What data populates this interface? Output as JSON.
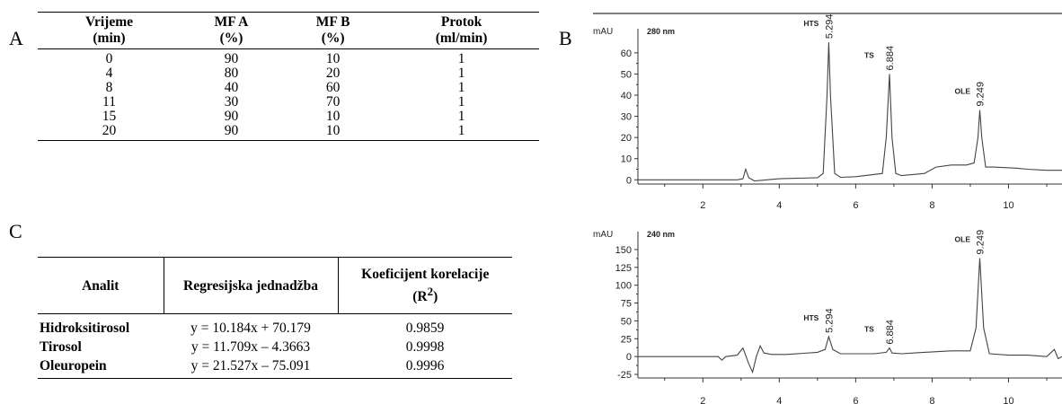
{
  "panels": {
    "a": "A",
    "b": "B",
    "c": "C"
  },
  "table_a": {
    "headers": [
      {
        "line1": "Vrijeme",
        "line2": "(min)"
      },
      {
        "line1": "MF A",
        "line2": "(%)"
      },
      {
        "line1": "MF B",
        "line2": "(%)"
      },
      {
        "line1": "Protok",
        "line2": "(ml/min)"
      }
    ],
    "rows": [
      [
        "0",
        "90",
        "10",
        "1"
      ],
      [
        "4",
        "80",
        "20",
        "1"
      ],
      [
        "8",
        "40",
        "60",
        "1"
      ],
      [
        "11",
        "30",
        "70",
        "1"
      ],
      [
        "15",
        "90",
        "10",
        "1"
      ],
      [
        "20",
        "90",
        "10",
        "1"
      ]
    ]
  },
  "table_c": {
    "headers": {
      "analyte": "Analit",
      "equation": "Regresijska jednadžba",
      "correlation": "Koeficijent korelacije",
      "correlation_symbol": "(R",
      "correlation_sup": "2",
      "correlation_close": ")"
    },
    "rows": [
      [
        "Hidroksitirosol",
        "y = 10.184x + 70.179",
        "0.9859"
      ],
      [
        "Tirosol",
        "y = 11.709x – 4.3663",
        "0.9998"
      ],
      [
        "Oleuropein",
        "y = 21.527x – 75.091",
        "0.9996"
      ]
    ]
  },
  "chart_data": [
    {
      "type": "line",
      "title": "280 nm",
      "ylabel": "mAU",
      "xlim": [
        0.3,
        11.4
      ],
      "ylim": [
        -2,
        68
      ],
      "x_ticks": [
        2,
        4,
        6,
        8,
        10
      ],
      "y_ticks": [
        0,
        10,
        20,
        30,
        40,
        50,
        60
      ],
      "peaks": [
        {
          "name": "HTS",
          "rt": "5.294",
          "x": 5.294,
          "height": 65
        },
        {
          "name": "TS",
          "rt": "6.884",
          "x": 6.884,
          "height": 50
        },
        {
          "name": "OLE",
          "rt": "9.249",
          "x": 9.249,
          "height": 33
        }
      ],
      "series": [
        {
          "x": [
            0.3,
            2.9,
            3.05,
            3.12,
            3.2,
            3.35,
            4.0,
            5.0,
            5.15,
            5.25,
            5.294,
            5.34,
            5.45,
            5.6,
            6.0,
            6.7,
            6.8,
            6.884,
            6.95,
            7.05,
            7.2,
            7.8,
            8.1,
            8.5,
            8.9,
            9.1,
            9.2,
            9.249,
            9.3,
            9.4,
            9.6,
            10.2,
            10.5,
            11.0,
            11.4
          ],
          "y": [
            0,
            0,
            0.5,
            5,
            1,
            -0.5,
            0.5,
            1,
            3,
            40,
            65,
            40,
            3,
            1.2,
            1.5,
            3,
            20,
            50,
            20,
            3,
            2,
            3,
            6,
            7,
            7,
            8,
            20,
            33,
            20,
            6,
            6,
            5.5,
            5,
            4.5,
            4.5
          ]
        }
      ]
    },
    {
      "type": "line",
      "title": "240 nm",
      "ylabel": "mAU",
      "xlim": [
        0.3,
        11.4
      ],
      "ylim": [
        -30,
        165
      ],
      "x_ticks": [
        2,
        4,
        6,
        8,
        10
      ],
      "y_ticks": [
        -25,
        0,
        25,
        50,
        75,
        100,
        125,
        150
      ],
      "peaks": [
        {
          "name": "HTS",
          "rt": "5.294",
          "x": 5.294,
          "height": 28
        },
        {
          "name": "TS",
          "rt": "6.884",
          "x": 6.884,
          "height": 12
        },
        {
          "name": "OLE",
          "rt": "9.249",
          "x": 9.249,
          "height": 138
        }
      ],
      "series": [
        {
          "x": [
            0.3,
            2.4,
            2.5,
            2.6,
            2.9,
            3.05,
            3.2,
            3.3,
            3.4,
            3.5,
            3.6,
            3.8,
            4.2,
            5.0,
            5.2,
            5.294,
            5.4,
            5.6,
            6.5,
            6.8,
            6.884,
            6.95,
            7.2,
            7.8,
            8.5,
            9.0,
            9.15,
            9.249,
            9.35,
            9.5,
            10.0,
            10.5,
            11.0,
            11.2,
            11.3,
            11.4
          ],
          "y": [
            0,
            0,
            -5,
            0,
            2,
            12,
            -10,
            -22,
            0,
            15,
            5,
            3,
            3,
            6,
            10,
            28,
            10,
            4,
            4,
            6,
            12,
            5,
            4,
            6,
            8,
            8,
            40,
            138,
            40,
            4,
            2,
            2,
            0,
            10,
            -3,
            0
          ]
        }
      ]
    }
  ]
}
